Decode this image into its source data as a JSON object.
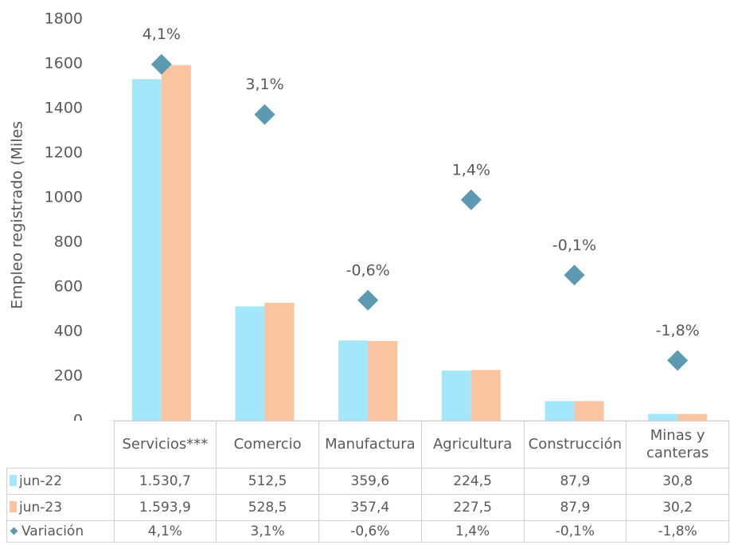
{
  "chart_data": {
    "type": "bar",
    "y_label": "Empleo registrado (Miles",
    "categories": [
      "Servicios***",
      "Comercio",
      "Manufactura",
      "Agricultura",
      "Construcción",
      "Minas y canteras"
    ],
    "series": [
      {
        "name": "jun-22",
        "color": "#a4e6fa",
        "values": [
          1530.7,
          512.5,
          359.6,
          224.5,
          87.9,
          30.8
        ],
        "value_labels": [
          "1.530,7",
          "512,5",
          "359,6",
          "224,5",
          "87,9",
          "30,8"
        ]
      },
      {
        "name": "jun-23",
        "color": "#fbc4a1",
        "values": [
          1593.9,
          528.5,
          357.4,
          227.5,
          87.9,
          30.2
        ],
        "value_labels": [
          "1.593,9",
          "528,5",
          "357,4",
          "227,5",
          "87,9",
          "30,2"
        ]
      },
      {
        "name": "Variación",
        "type": "scatter",
        "axis": "y2",
        "color": "#5b9ab0",
        "values": [
          4.1,
          3.1,
          -0.6,
          1.4,
          -0.1,
          -1.8
        ],
        "value_labels": [
          "4,1%",
          "3,1%",
          "-0,6%",
          "1,4%",
          "-0,1%",
          "-1,8%"
        ]
      }
    ],
    "ylim": [
      0,
      1800
    ],
    "yticks": [
      0,
      200,
      400,
      600,
      800,
      1000,
      1200,
      1400,
      1600,
      1800
    ],
    "y2lim": [
      -3,
      5
    ]
  }
}
